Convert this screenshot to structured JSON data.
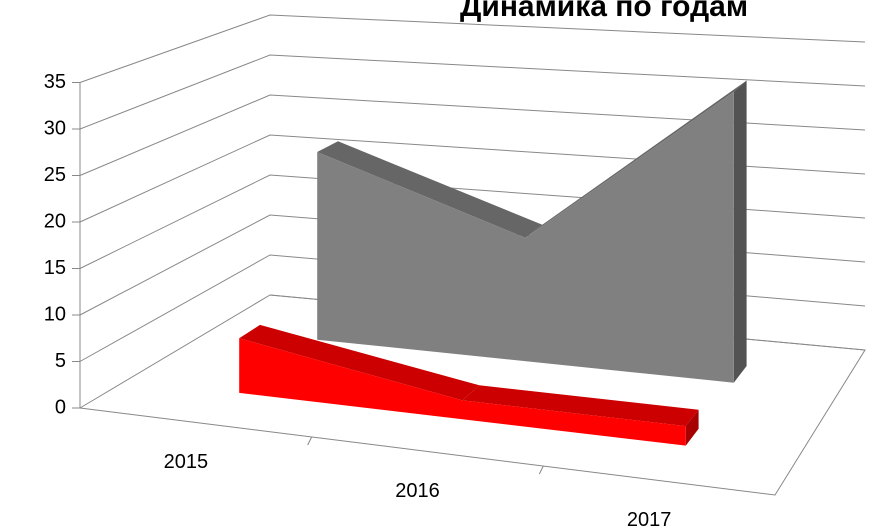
{
  "chart_data": {
    "type": "area3d",
    "title": "Динамика по годам",
    "categories": [
      "2015",
      "2016",
      "2017"
    ],
    "series": [
      {
        "color": "#ff0000",
        "values": [
          6,
          2,
          2
        ]
      },
      {
        "color": "#808080",
        "values": [
          22,
          14,
          32
        ]
      }
    ],
    "ylim": [
      0,
      35
    ],
    "yticks": [
      0,
      5,
      10,
      15,
      20,
      25,
      30,
      35
    ],
    "grid": true
  }
}
